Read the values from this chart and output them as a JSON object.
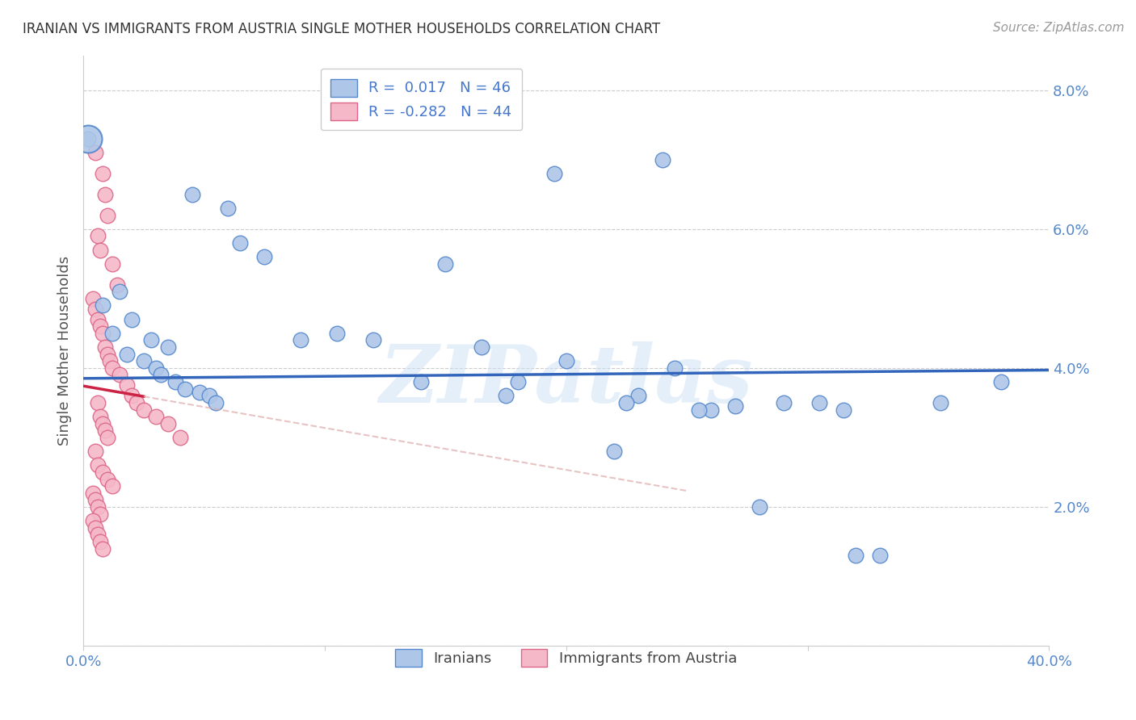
{
  "title": "IRANIAN VS IMMIGRANTS FROM AUSTRIA SINGLE MOTHER HOUSEHOLDS CORRELATION CHART",
  "source": "Source: ZipAtlas.com",
  "ylabel": "Single Mother Households",
  "blue_R": 0.017,
  "blue_N": 46,
  "pink_R": -0.282,
  "pink_N": 44,
  "blue_points": [
    [
      0.2,
      7.3
    ],
    [
      24.0,
      7.0
    ],
    [
      19.5,
      6.8
    ],
    [
      4.5,
      6.5
    ],
    [
      6.0,
      6.3
    ],
    [
      6.5,
      5.8
    ],
    [
      7.5,
      5.6
    ],
    [
      1.5,
      5.1
    ],
    [
      0.8,
      4.9
    ],
    [
      2.0,
      4.7
    ],
    [
      1.2,
      4.5
    ],
    [
      2.8,
      4.4
    ],
    [
      3.5,
      4.3
    ],
    [
      1.8,
      4.2
    ],
    [
      2.5,
      4.1
    ],
    [
      3.0,
      4.0
    ],
    [
      3.2,
      3.9
    ],
    [
      3.8,
      3.8
    ],
    [
      4.2,
      3.7
    ],
    [
      4.8,
      3.65
    ],
    [
      5.2,
      3.6
    ],
    [
      5.5,
      3.5
    ],
    [
      10.5,
      4.5
    ],
    [
      12.0,
      4.4
    ],
    [
      15.0,
      5.5
    ],
    [
      16.5,
      4.3
    ],
    [
      18.0,
      3.8
    ],
    [
      20.0,
      4.1
    ],
    [
      23.0,
      3.6
    ],
    [
      24.5,
      4.0
    ],
    [
      26.0,
      3.4
    ],
    [
      29.0,
      3.5
    ],
    [
      30.5,
      3.5
    ],
    [
      14.0,
      3.8
    ],
    [
      17.5,
      3.6
    ],
    [
      22.5,
      3.5
    ],
    [
      25.5,
      3.4
    ],
    [
      27.0,
      3.45
    ],
    [
      31.5,
      3.4
    ],
    [
      28.0,
      2.0
    ],
    [
      32.0,
      1.3
    ],
    [
      33.0,
      1.3
    ],
    [
      35.5,
      3.5
    ],
    [
      38.0,
      3.8
    ],
    [
      22.0,
      2.8
    ],
    [
      9.0,
      4.4
    ]
  ],
  "pink_points": [
    [
      0.5,
      7.1
    ],
    [
      0.8,
      6.8
    ],
    [
      0.9,
      6.5
    ],
    [
      1.0,
      6.2
    ],
    [
      0.6,
      5.9
    ],
    [
      0.7,
      5.7
    ],
    [
      1.2,
      5.5
    ],
    [
      1.4,
      5.2
    ],
    [
      0.4,
      5.0
    ],
    [
      0.5,
      4.85
    ],
    [
      0.6,
      4.7
    ],
    [
      0.7,
      4.6
    ],
    [
      0.8,
      4.5
    ],
    [
      0.9,
      4.3
    ],
    [
      1.0,
      4.2
    ],
    [
      1.1,
      4.1
    ],
    [
      1.2,
      4.0
    ],
    [
      1.5,
      3.9
    ],
    [
      1.8,
      3.75
    ],
    [
      2.0,
      3.6
    ],
    [
      2.2,
      3.5
    ],
    [
      2.5,
      3.4
    ],
    [
      3.0,
      3.3
    ],
    [
      0.6,
      3.5
    ],
    [
      0.7,
      3.3
    ],
    [
      0.8,
      3.2
    ],
    [
      0.9,
      3.1
    ],
    [
      1.0,
      3.0
    ],
    [
      3.5,
      3.2
    ],
    [
      4.0,
      3.0
    ],
    [
      0.5,
      2.8
    ],
    [
      0.6,
      2.6
    ],
    [
      0.8,
      2.5
    ],
    [
      1.0,
      2.4
    ],
    [
      1.2,
      2.3
    ],
    [
      0.4,
      2.2
    ],
    [
      0.5,
      2.1
    ],
    [
      0.6,
      2.0
    ],
    [
      0.7,
      1.9
    ],
    [
      0.4,
      1.8
    ],
    [
      0.5,
      1.7
    ],
    [
      0.6,
      1.6
    ],
    [
      0.7,
      1.5
    ],
    [
      0.8,
      1.4
    ]
  ],
  "ylim": [
    0,
    8.5
  ],
  "xlim": [
    0,
    40
  ],
  "blue_color": "#aec6e8",
  "pink_color": "#f5b8c8",
  "blue_edge_color": "#5588cc",
  "pink_edge_color": "#dd6688",
  "blue_line_color": "#3366bb",
  "pink_line_solid_color": "#cc2244",
  "pink_line_dash_color": "#ddaaaa",
  "watermark": "ZIPatlas",
  "background_color": "#ffffff",
  "grid_color": "#cccccc"
}
